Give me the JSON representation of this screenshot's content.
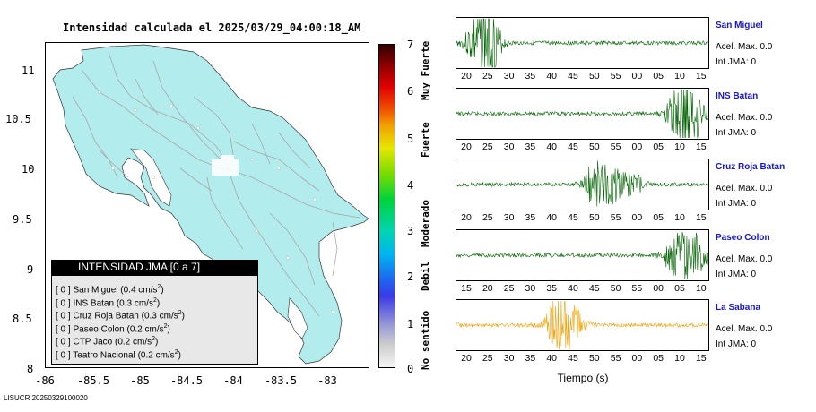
{
  "title": "Intensidad calculada el 2025/03/29_04:00:18_AM",
  "map": {
    "y_ticks": [
      "11",
      "10.5",
      "10",
      "9.5",
      "9",
      "8.5",
      "8"
    ],
    "x_ticks": [
      "-86",
      "-85.5",
      "-85",
      "-84.5",
      "-84",
      "-83.5",
      "-83"
    ],
    "land_color": "#b2ecec",
    "road_color": "#a8a8a8",
    "legend_title": "INTENSIDAD JMA [0 a 7]",
    "legend_rows": [
      {
        "level": "[ 0 ]",
        "station": "San Miguel",
        "accel": "(0.4 cm/s",
        "sup": "2",
        "close": ")"
      },
      {
        "level": "[ 0 ]",
        "station": "INS Batan",
        "accel": "(0.3 cm/s",
        "sup": "2",
        "close": ")"
      },
      {
        "level": "[ 0 ]",
        "station": "Cruz Roja Batan",
        "accel": "(0.3 cm/s",
        "sup": "2",
        "close": ")"
      },
      {
        "level": "[ 0 ]",
        "station": "Paseo Colon",
        "accel": "(0.2 cm/s",
        "sup": "2",
        "close": ")"
      },
      {
        "level": "[ 0 ]",
        "station": "CTP Jaco",
        "accel": "(0.2 cm/s",
        "sup": "2",
        "close": ")"
      },
      {
        "level": "[ 0 ]",
        "station": "Teatro Nacional",
        "accel": "(0.2 cm/s",
        "sup": "2",
        "close": ")"
      }
    ]
  },
  "colorbar": {
    "numbers": [
      "7",
      "6",
      "5",
      "4",
      "3",
      "2",
      "1",
      "0"
    ],
    "labels": [
      "Muy Fuerte",
      "Fuerte",
      "Moderado",
      "Debil",
      "No sentido"
    ]
  },
  "seismograms": {
    "x_axis_title": "Tiempo (s)",
    "accel_label": "Acel. Max. 0.0",
    "int_label": "Int JMA: 0",
    "trace_color_default": "#006400",
    "trace_color_highlight": "#f0a000",
    "panels": [
      {
        "station": "San Miguel",
        "ticks": [
          "20",
          "25",
          "30",
          "35",
          "40",
          "45",
          "50",
          "55",
          "00",
          "05",
          "10",
          "15"
        ],
        "color": "#006400"
      },
      {
        "station": "INS Batan",
        "ticks": [
          "20",
          "25",
          "30",
          "35",
          "40",
          "45",
          "50",
          "55",
          "00",
          "05",
          "10",
          "15"
        ],
        "color": "#006400"
      },
      {
        "station": "Cruz Roja Batan",
        "ticks": [
          "20",
          "25",
          "30",
          "35",
          "40",
          "45",
          "50",
          "55",
          "00",
          "05",
          "10",
          "15"
        ],
        "color": "#006400"
      },
      {
        "station": "Paseo Colon",
        "ticks": [
          "15",
          "20",
          "25",
          "30",
          "35",
          "40",
          "45",
          "50",
          "55",
          "00",
          "05",
          "10"
        ],
        "color": "#006400"
      },
      {
        "station": "La Sabana",
        "ticks": [
          "20",
          "25",
          "30",
          "35",
          "40",
          "45",
          "50",
          "55",
          "00",
          "05",
          "10",
          "15"
        ],
        "color": "#f0a000"
      }
    ]
  },
  "footer": "LISUCR 20250329100020"
}
